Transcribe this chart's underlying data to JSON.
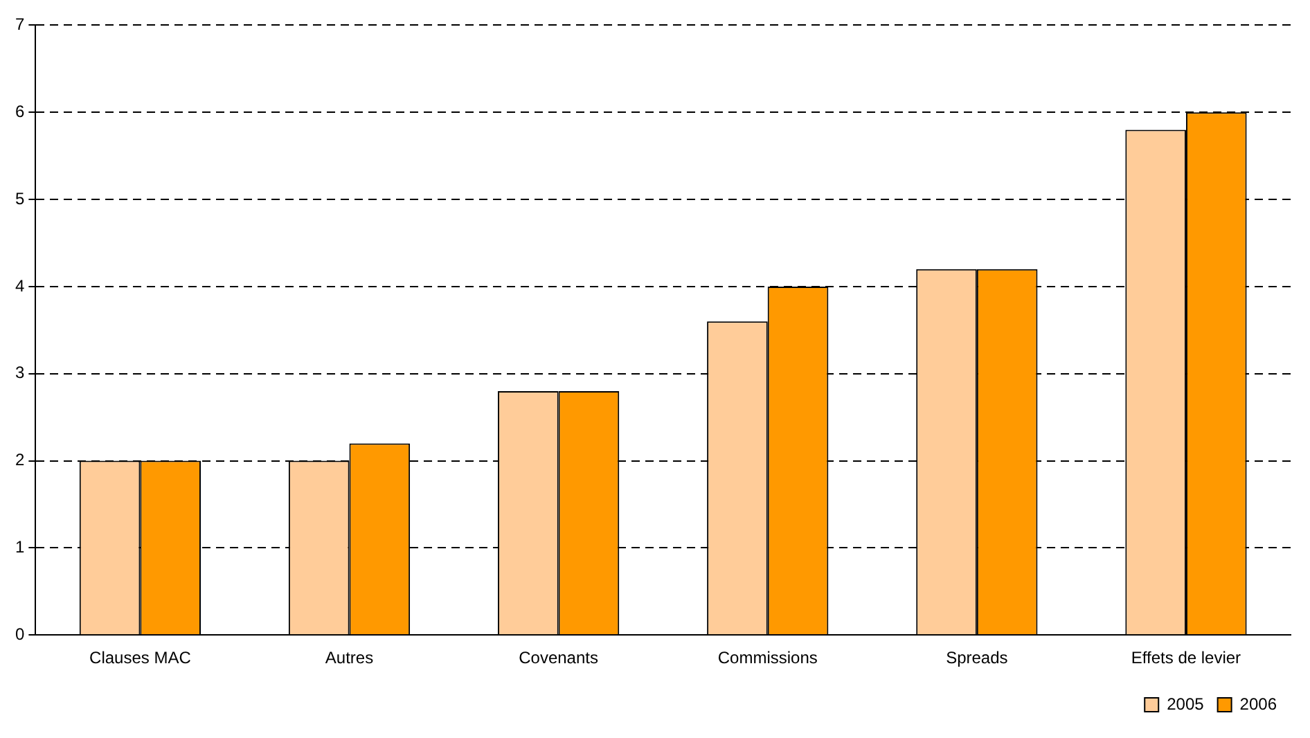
{
  "chart_data": {
    "type": "bar",
    "categories": [
      "Clauses MAC",
      "Autres",
      "Covenants",
      "Commissions",
      "Spreads",
      "Effets de levier"
    ],
    "series": [
      {
        "name": "2005",
        "color": "#ffcc99",
        "values": [
          2,
          2,
          2.8,
          3.6,
          4.2,
          5.8
        ]
      },
      {
        "name": "2006",
        "color": "#ff9900",
        "values": [
          2,
          2.2,
          2.8,
          4,
          4.2,
          6
        ]
      }
    ],
    "ylim": [
      0,
      7
    ],
    "yticks": [
      0,
      1,
      2,
      3,
      4,
      5,
      6,
      7
    ],
    "grid": "y",
    "legend": "bottom right"
  }
}
